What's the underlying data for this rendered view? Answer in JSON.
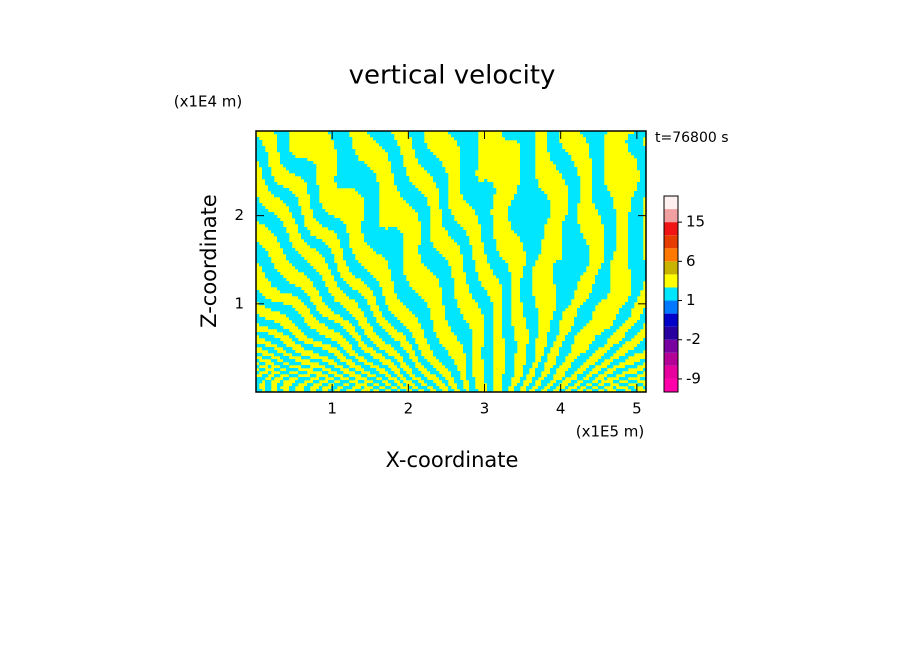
{
  "chart_data": {
    "type": "contour",
    "title": "vertical velocity",
    "x_label": "X-coordinate",
    "y_label": "Z-coordinate",
    "x_unit": "(x1E5 m)",
    "y_unit": "(x1E4 m)",
    "annotation": "t=76800 s",
    "xlim": [
      0,
      5.12
    ],
    "xticks": [
      1,
      2,
      3,
      4,
      5
    ],
    "ylim": [
      0,
      2.96
    ],
    "yticks": [
      1,
      2
    ],
    "colorbar": {
      "levels": [
        -12,
        -9,
        -6,
        -4,
        -2,
        -1,
        0,
        1,
        2,
        4,
        6,
        9,
        12,
        15,
        18,
        21
      ],
      "colors": [
        "#ff00aa",
        "#e6009e",
        "#b40096",
        "#7800a0",
        "#2800a0",
        "#0000c8",
        "#0078ff",
        "#00e6ff",
        "#ffff00",
        "#c8b400",
        "#ff7800",
        "#e63c00",
        "#f01414",
        "#f0a0a0",
        "#fff0f0"
      ],
      "ticks": [
        15,
        6,
        1,
        -2,
        -9
      ]
    },
    "field_colors": [
      "#00e6ff",
      "#ffff00"
    ]
  }
}
